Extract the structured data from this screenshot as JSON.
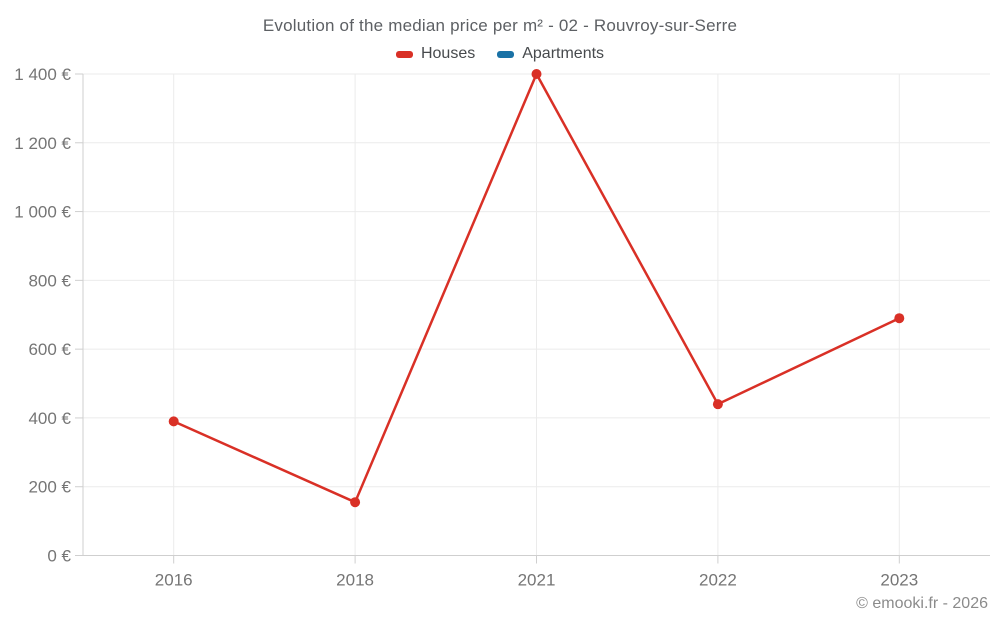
{
  "title": "Evolution of the median price per m² - 02 - Rouvroy-sur-Serre",
  "legend": {
    "items": [
      {
        "label": "Houses",
        "color": "#d93026"
      },
      {
        "label": "Apartments",
        "color": "#1a72a6"
      }
    ]
  },
  "copyright": "© emooki.fr - 2026",
  "colors": {
    "houses": "#d93026",
    "apartments": "#1a72a6",
    "grid": "#ebebeb",
    "axis": "#cfcfcf",
    "tick_label": "#757575"
  },
  "chart_data": {
    "type": "line",
    "title": "Evolution of the median price per m² - 02 - Rouvroy-sur-Serre",
    "categories": [
      "2016",
      "2018",
      "2021",
      "2022",
      "2023"
    ],
    "series": [
      {
        "name": "Houses",
        "color": "#d93026",
        "values": [
          390,
          155,
          1400,
          440,
          690
        ]
      },
      {
        "name": "Apartments",
        "color": "#1a72a6",
        "values": []
      }
    ],
    "xlabel": "",
    "ylabel": "",
    "ylim": [
      0,
      1400
    ],
    "y_tick_step": 200,
    "y_tick_labels": [
      "0 €",
      "200 €",
      "400 €",
      "600 €",
      "800 €",
      "1 000 €",
      "1 200 €",
      "1 400 €"
    ],
    "grid": true,
    "legend_position": "top",
    "currency": "€"
  }
}
